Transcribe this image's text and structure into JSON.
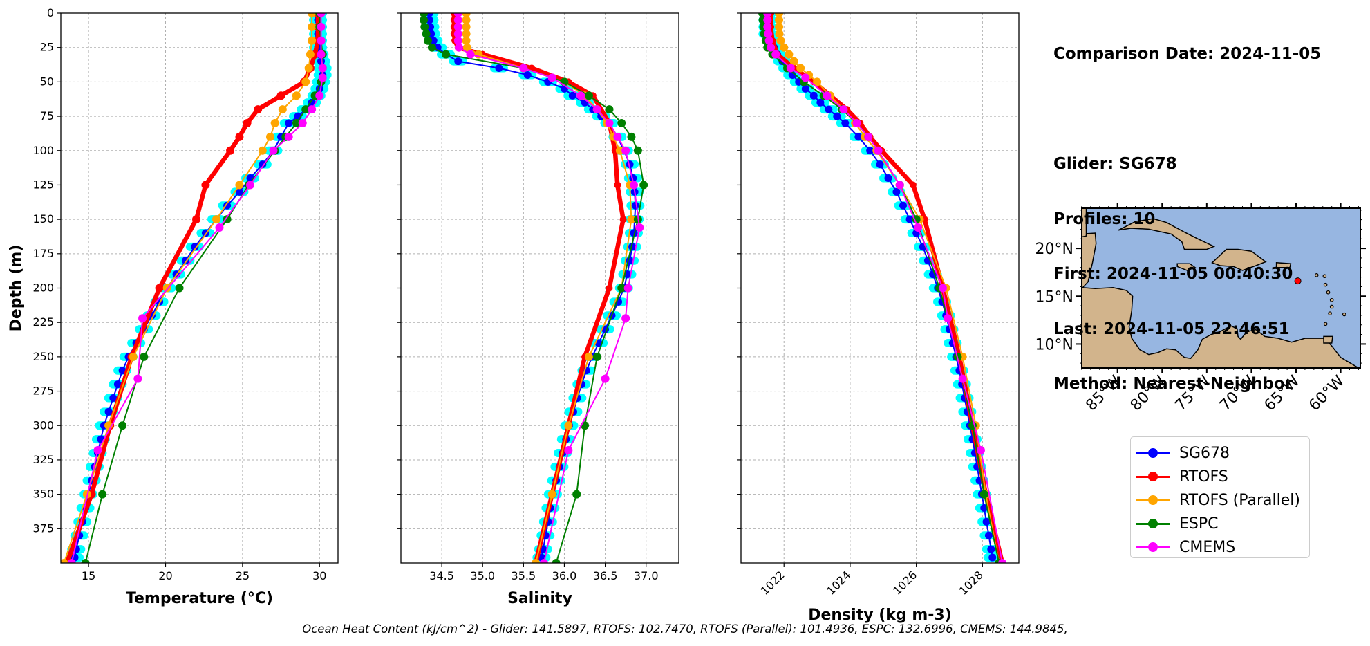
{
  "info": {
    "comparison_date": "Comparison Date: 2024-11-05",
    "glider": "Glider: SG678",
    "profiles": "Profiles: 10",
    "first": "First: 2024-11-05 00:40:30",
    "last": "Last: 2024-11-05 22:46:51",
    "method": "Method: Nearest-Neighbor"
  },
  "footer": "Ocean Heat Content (kJ/cm^2) - Glider: 141.5897,  RTOFS: 102.7470,  RTOFS (Parallel): 101.4936,  ESPC: 132.6996,  CMEMS: 144.9845,",
  "legend": [
    {
      "name": "SG678",
      "color": "#0000ff"
    },
    {
      "name": "RTOFS",
      "color": "#ff0000"
    },
    {
      "name": "RTOFS (Parallel)",
      "color": "#ffa500"
    },
    {
      "name": "ESPC",
      "color": "#008000"
    },
    {
      "name": "CMEMS",
      "color": "#ff00ff"
    }
  ],
  "map": {
    "type": "map",
    "lat_labels": [
      "20°N",
      "15°N",
      "10°N"
    ],
    "lon_labels": [
      "85°W",
      "80°W",
      "75°W",
      "70°W",
      "65°W",
      "60°W"
    ],
    "ocean_color": "#97b6e1",
    "land_color": "#d2b48c",
    "glider_marker_color": "#ff0000"
  },
  "chart_data": [
    {
      "type": "line",
      "xlabel": "Temperature (°C)",
      "ylabel": "Depth (m)",
      "xlim": [
        13.2,
        31.2
      ],
      "ylim": [
        400,
        0
      ],
      "xticks": [
        15,
        20,
        25,
        30
      ],
      "yticks": [
        0,
        25,
        50,
        75,
        100,
        125,
        150,
        175,
        200,
        225,
        250,
        275,
        300,
        325,
        350,
        375
      ],
      "grid": true,
      "glider_envelope_color": "#00ffff",
      "series": [
        {
          "name": "SG678",
          "color": "#0000ff",
          "width": 2,
          "marker": 5.5,
          "depth": [
            0,
            5,
            10,
            15,
            20,
            25,
            30,
            35,
            40,
            45,
            50,
            55,
            60,
            65,
            70,
            75,
            80,
            90,
            100,
            110,
            120,
            130,
            140,
            150,
            160,
            170,
            180,
            190,
            200,
            210,
            220,
            230,
            240,
            250,
            260,
            270,
            280,
            290,
            300,
            310,
            320,
            330,
            340,
            350,
            360,
            370,
            380,
            390,
            396
          ],
          "values": [
            29.9,
            29.9,
            29.9,
            29.9,
            29.9,
            29.9,
            30.0,
            30.1,
            30.2,
            30.2,
            30.1,
            30.0,
            29.8,
            29.5,
            29.1,
            28.6,
            28.0,
            27.5,
            27.0,
            26.3,
            25.5,
            24.8,
            24.0,
            23.3,
            22.6,
            21.9,
            21.3,
            20.7,
            20.1,
            19.6,
            19.1,
            18.6,
            18.1,
            17.6,
            17.2,
            16.9,
            16.6,
            16.3,
            16.0,
            15.8,
            15.6,
            15.4,
            15.2,
            15.0,
            14.8,
            14.6,
            14.4,
            14.2,
            14.1
          ]
        },
        {
          "name": "RTOFS",
          "color": "#ff0000",
          "width": 6.5,
          "marker": 6,
          "depth": [
            0,
            10,
            20,
            30,
            40,
            50,
            60,
            70,
            80,
            90,
            100,
            125,
            150,
            200,
            250,
            300,
            350,
            400
          ],
          "values": [
            29.9,
            29.9,
            29.9,
            29.7,
            29.4,
            29.0,
            27.5,
            26.0,
            25.3,
            24.8,
            24.2,
            22.6,
            22.0,
            19.6,
            17.8,
            16.4,
            15.2,
            13.6
          ]
        },
        {
          "name": "RTOFS (Parallel)",
          "color": "#ffa500",
          "width": 2,
          "marker": 6,
          "depth": [
            0,
            10,
            20,
            30,
            40,
            50,
            60,
            70,
            80,
            90,
            100,
            125,
            150,
            200,
            250,
            300,
            350,
            400
          ],
          "values": [
            29.5,
            29.5,
            29.5,
            29.4,
            29.3,
            29.1,
            28.5,
            27.6,
            27.1,
            26.8,
            26.3,
            24.8,
            23.3,
            20.1,
            17.9,
            16.3,
            14.9,
            13.4
          ]
        },
        {
          "name": "ESPC",
          "color": "#008000",
          "width": 2,
          "marker": 6,
          "depth": [
            0,
            10,
            20,
            30,
            40,
            50,
            60,
            70,
            80,
            90,
            100,
            125,
            150,
            200,
            250,
            300,
            350,
            400
          ],
          "values": [
            30.0,
            30.0,
            30.1,
            30.2,
            30.2,
            30.1,
            29.7,
            29.1,
            28.5,
            27.8,
            27.1,
            25.4,
            24.0,
            20.9,
            18.6,
            17.2,
            15.9,
            14.8
          ]
        },
        {
          "name": "CMEMS",
          "color": "#ff00ff",
          "width": 2,
          "marker": 6,
          "depth": [
            0,
            10,
            20,
            30,
            40,
            47,
            60,
            70,
            80,
            90,
            100,
            125,
            156,
            222,
            266,
            318,
            400
          ],
          "values": [
            30.1,
            30.1,
            30.1,
            30.1,
            30.2,
            30.2,
            30.0,
            29.5,
            28.9,
            28.0,
            27.0,
            25.5,
            23.5,
            18.5,
            18.2,
            15.6,
            13.9
          ]
        }
      ]
    },
    {
      "type": "line",
      "xlabel": "Salinity",
      "ylabel": "",
      "xlim": [
        34.0,
        37.4
      ],
      "ylim": [
        400,
        0
      ],
      "xticks": [
        34.5,
        35.0,
        35.5,
        36.0,
        36.5,
        37.0
      ],
      "tick_labels": [
        "34.5",
        "35.0",
        "35.5",
        "36.0",
        "36.5",
        "37.0"
      ],
      "grid": true,
      "glider_envelope_color": "#00ffff",
      "series": [
        {
          "name": "SG678",
          "color": "#0000ff",
          "width": 2,
          "marker": 5.5,
          "depth": [
            0,
            5,
            10,
            15,
            20,
            25,
            30,
            35,
            40,
            45,
            50,
            55,
            60,
            65,
            70,
            75,
            80,
            90,
            100,
            110,
            120,
            130,
            140,
            150,
            160,
            170,
            180,
            190,
            200,
            210,
            220,
            230,
            240,
            250,
            260,
            270,
            280,
            290,
            300,
            310,
            320,
            330,
            340,
            350,
            360,
            370,
            380,
            390,
            396
          ],
          "values": [
            34.35,
            34.35,
            34.36,
            34.37,
            34.4,
            34.45,
            34.55,
            34.7,
            35.2,
            35.55,
            35.8,
            36.0,
            36.1,
            36.25,
            36.35,
            36.45,
            36.55,
            36.65,
            36.73,
            36.8,
            36.84,
            36.86,
            36.87,
            36.86,
            36.85,
            36.83,
            36.8,
            36.77,
            36.73,
            36.66,
            36.58,
            36.5,
            36.42,
            36.34,
            36.27,
            36.21,
            36.16,
            36.11,
            36.06,
            36.02,
            35.98,
            35.94,
            35.9,
            35.86,
            35.83,
            35.8,
            35.77,
            35.74,
            35.72
          ]
        },
        {
          "name": "RTOFS",
          "color": "#ff0000",
          "width": 6.5,
          "marker": 5,
          "depth": [
            0,
            5,
            10,
            15,
            20,
            25,
            30,
            40,
            50,
            60,
            80,
            100,
            125,
            150,
            200,
            250,
            300,
            350,
            400
          ],
          "values": [
            34.65,
            34.65,
            34.65,
            34.65,
            34.66,
            34.7,
            35.0,
            35.6,
            36.05,
            36.35,
            36.55,
            36.62,
            36.65,
            36.72,
            36.55,
            36.25,
            36.05,
            35.85,
            35.65
          ]
        },
        {
          "name": "RTOFS (Parallel)",
          "color": "#ffa500",
          "width": 2,
          "marker": 6,
          "depth": [
            0,
            5,
            10,
            15,
            20,
            25,
            30,
            40,
            50,
            60,
            70,
            80,
            90,
            100,
            125,
            150,
            200,
            250,
            300,
            350,
            400
          ],
          "values": [
            34.8,
            34.8,
            34.8,
            34.8,
            34.8,
            34.81,
            34.95,
            35.5,
            36.0,
            36.25,
            36.4,
            36.52,
            36.6,
            36.68,
            36.8,
            36.82,
            36.7,
            36.3,
            36.05,
            35.85,
            35.65
          ]
        },
        {
          "name": "ESPC",
          "color": "#008000",
          "width": 2,
          "marker": 6,
          "depth": [
            0,
            5,
            10,
            15,
            20,
            25,
            30,
            40,
            50,
            60,
            70,
            80,
            90,
            100,
            125,
            150,
            200,
            250,
            300,
            350,
            400
          ],
          "values": [
            34.28,
            34.28,
            34.29,
            34.31,
            34.33,
            34.38,
            34.55,
            35.5,
            36.0,
            36.3,
            36.55,
            36.7,
            36.82,
            36.9,
            36.97,
            36.9,
            36.7,
            36.4,
            36.25,
            36.15,
            35.9
          ]
        },
        {
          "name": "CMEMS",
          "color": "#ff00ff",
          "width": 2,
          "marker": 6,
          "depth": [
            0,
            5,
            10,
            15,
            20,
            25,
            30,
            40,
            47,
            60,
            70,
            80,
            90,
            100,
            125,
            156,
            200,
            222,
            266,
            318,
            400
          ],
          "values": [
            34.7,
            34.7,
            34.7,
            34.7,
            34.7,
            34.71,
            34.85,
            35.5,
            35.85,
            36.2,
            36.4,
            36.55,
            36.65,
            36.75,
            36.85,
            36.92,
            36.78,
            36.75,
            36.5,
            36.05,
            35.75
          ]
        }
      ]
    },
    {
      "type": "line",
      "xlabel": "Density (kg m-3)",
      "ylabel": "",
      "xlim": [
        1020.7,
        1029.1
      ],
      "ylim": [
        400,
        0
      ],
      "xticks": [
        1022,
        1024,
        1026,
        1028
      ],
      "grid": true,
      "glider_envelope_color": "#00ffff",
      "series": [
        {
          "name": "SG678",
          "color": "#0000ff",
          "width": 2,
          "marker": 5.5,
          "depth": [
            0,
            5,
            10,
            15,
            20,
            25,
            30,
            35,
            40,
            45,
            50,
            55,
            60,
            65,
            70,
            75,
            80,
            90,
            100,
            110,
            120,
            130,
            140,
            150,
            160,
            170,
            180,
            190,
            200,
            210,
            220,
            230,
            240,
            250,
            260,
            270,
            280,
            290,
            300,
            310,
            320,
            330,
            340,
            350,
            360,
            370,
            380,
            390,
            396
          ],
          "values": [
            1021.5,
            1021.5,
            1021.5,
            1021.5,
            1021.6,
            1021.7,
            1021.8,
            1021.95,
            1022.1,
            1022.25,
            1022.45,
            1022.65,
            1022.9,
            1023.1,
            1023.35,
            1023.6,
            1023.85,
            1024.25,
            1024.6,
            1024.9,
            1025.15,
            1025.4,
            1025.6,
            1025.8,
            1026.0,
            1026.2,
            1026.35,
            1026.5,
            1026.65,
            1026.78,
            1026.9,
            1027.0,
            1027.1,
            1027.2,
            1027.3,
            1027.38,
            1027.46,
            1027.54,
            1027.62,
            1027.7,
            1027.77,
            1027.84,
            1027.91,
            1027.98,
            1028.05,
            1028.12,
            1028.19,
            1028.26,
            1028.3
          ]
        },
        {
          "name": "RTOFS",
          "color": "#ff0000",
          "width": 6.5,
          "marker": 5,
          "depth": [
            0,
            10,
            20,
            30,
            40,
            50,
            60,
            70,
            80,
            90,
            100,
            125,
            150,
            200,
            250,
            300,
            350,
            400
          ],
          "values": [
            1021.6,
            1021.6,
            1021.65,
            1021.8,
            1022.3,
            1022.9,
            1023.4,
            1023.9,
            1024.3,
            1024.6,
            1024.95,
            1025.9,
            1026.25,
            1026.8,
            1027.3,
            1027.7,
            1028.1,
            1028.6
          ]
        },
        {
          "name": "RTOFS (Parallel)",
          "color": "#ffa500",
          "width": 2,
          "marker": 6,
          "depth": [
            0,
            5,
            10,
            15,
            20,
            25,
            30,
            35,
            40,
            45,
            50,
            60,
            70,
            80,
            90,
            100,
            125,
            150,
            200,
            250,
            300,
            350,
            400
          ],
          "values": [
            1021.85,
            1021.85,
            1021.85,
            1021.86,
            1021.9,
            1022.0,
            1022.15,
            1022.3,
            1022.5,
            1022.75,
            1023.0,
            1023.4,
            1023.8,
            1024.15,
            1024.45,
            1024.8,
            1025.5,
            1026.1,
            1026.9,
            1027.4,
            1027.8,
            1028.1,
            1028.5
          ]
        },
        {
          "name": "ESPC",
          "color": "#008000",
          "width": 2,
          "marker": 6,
          "depth": [
            0,
            5,
            10,
            15,
            20,
            25,
            30,
            40,
            50,
            60,
            70,
            80,
            90,
            100,
            125,
            150,
            200,
            250,
            300,
            350,
            400
          ],
          "values": [
            1021.35,
            1021.36,
            1021.38,
            1021.4,
            1021.45,
            1021.5,
            1021.65,
            1022.1,
            1022.6,
            1023.2,
            1023.75,
            1024.2,
            1024.55,
            1024.85,
            1025.5,
            1026.0,
            1026.7,
            1027.25,
            1027.7,
            1028.05,
            1028.5
          ]
        },
        {
          "name": "CMEMS",
          "color": "#ff00ff",
          "width": 2,
          "marker": 6,
          "depth": [
            0,
            5,
            10,
            15,
            20,
            25,
            30,
            40,
            47,
            60,
            70,
            80,
            90,
            100,
            125,
            156,
            200,
            222,
            266,
            318,
            400
          ],
          "values": [
            1021.5,
            1021.5,
            1021.5,
            1021.52,
            1021.55,
            1021.6,
            1021.75,
            1022.2,
            1022.65,
            1023.3,
            1023.8,
            1024.2,
            1024.55,
            1024.85,
            1025.5,
            1026.05,
            1026.8,
            1026.95,
            1027.4,
            1027.95,
            1028.6
          ]
        }
      ]
    }
  ]
}
